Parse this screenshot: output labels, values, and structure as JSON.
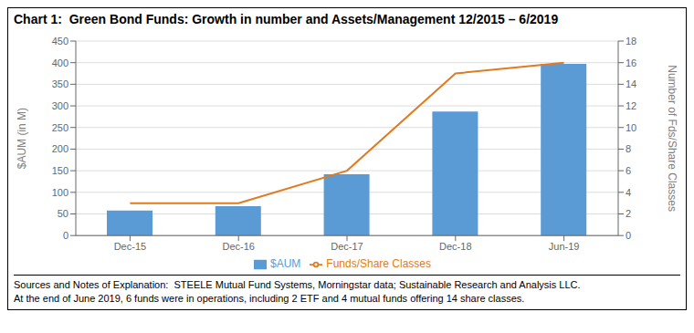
{
  "chart_data": {
    "type": "bar",
    "title": "Chart 1:  Green Bond Funds: Growth in number and Assets/Management 12/2015 – 6/2019",
    "categories": [
      "Dec-15",
      "Dec-16",
      "Dec-17",
      "Dec-18",
      "Jun-19"
    ],
    "series": [
      {
        "name": "$AUM",
        "type": "bar",
        "color": "#5b9bd5",
        "values": [
          58,
          68,
          142,
          287,
          397
        ]
      },
      {
        "name": "Funds/Share Classes",
        "type": "line",
        "color": "#e07b20",
        "axis": "y2",
        "values": [
          3,
          3,
          6,
          15,
          16
        ]
      }
    ],
    "ylabel": "$AUM (in M)",
    "y2label": "Number of Fds/Share Classes",
    "ylim": [
      0,
      450
    ],
    "yticks": [
      0,
      50,
      100,
      150,
      200,
      250,
      300,
      350,
      400,
      450
    ],
    "y2lim": [
      0,
      18
    ],
    "y2ticks": [
      0,
      2,
      4,
      6,
      8,
      10,
      12,
      14,
      16,
      18
    ],
    "grid": true,
    "legend": "bottom",
    "annotations": [
      "Sources and Notes of Explanation:  STEELE Mutual Fund Systems, Morningstar data; Sustainable Research and Analysis LLC.",
      "At the end of June 2019, 6 funds were in operations, including 2 ETF and 4 mutual funds offering 14 share classes."
    ]
  }
}
